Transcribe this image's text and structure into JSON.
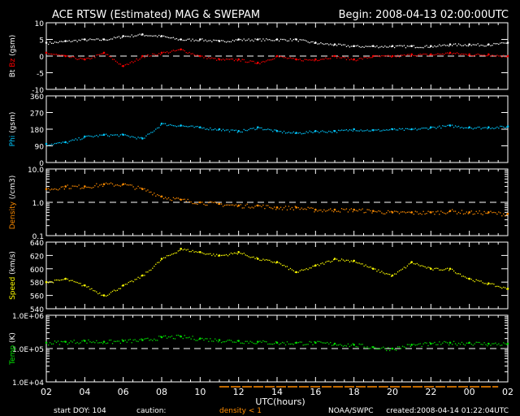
{
  "title": "ACE RTSW (Estimated) MAG & SWEPAM",
  "begin": "Begin: 2008-04-13 02:00:00UTC",
  "footer": {
    "start_doy": "start DOY: 104",
    "caution": "caution:",
    "caution_note": "density < 1",
    "source": "NOAA/SWPC",
    "created": "created:2008-04-14 01:22:04UTC"
  },
  "colors": {
    "bt": "#ffffff",
    "bz": "#ff0000",
    "phi": "#00c8ff",
    "density": "#ff8c00",
    "speed": "#ffff00",
    "temp": "#00e000"
  },
  "chart_data": {
    "type": "scatter",
    "xlabel": "UTC(hours)",
    "x_ticks": [
      "02",
      "04",
      "06",
      "08",
      "10",
      "12",
      "14",
      "16",
      "18",
      "20",
      "22",
      "00",
      "02"
    ],
    "x_hours": [
      0,
      1,
      2,
      3,
      4,
      5,
      6,
      7,
      8,
      9,
      10,
      11,
      12,
      13,
      14,
      15,
      16,
      17,
      18,
      19,
      20,
      21,
      22,
      23,
      24
    ],
    "panels": [
      {
        "id": "mag",
        "ylabel_a": "Bt",
        "ylabel_b": "Bz",
        "ylabel_unit": "(gsm)",
        "scale": "linear",
        "ylim": [
          -10,
          10
        ],
        "yticks": [
          -10,
          -5,
          0,
          5,
          10
        ],
        "yticklabels": [
          "-10",
          "-5",
          "0",
          "5",
          "10"
        ],
        "refline": 0,
        "series": [
          {
            "name": "Bt",
            "color": "#ffffff",
            "values": [
              4,
              4.5,
              5,
              5,
              6,
              6.5,
              6,
              5,
              5,
              4.5,
              5,
              5,
              5,
              5,
              4,
              3.5,
              3,
              3,
              3,
              3,
              3,
              3.5,
              3.5,
              3.5,
              4
            ]
          },
          {
            "name": "Bz",
            "color": "#ff0000",
            "values": [
              1,
              0,
              -1,
              1,
              -3,
              0,
              1,
              2,
              0,
              -1,
              -1,
              -2,
              0,
              -1,
              -1,
              0,
              -1,
              0,
              0,
              0.5,
              0.5,
              1,
              0.5,
              0.5,
              0
            ]
          }
        ]
      },
      {
        "id": "phi",
        "ylabel_a": "Phi",
        "ylabel_unit": "(gsm)",
        "scale": "linear",
        "ylim": [
          0,
          360
        ],
        "yticks": [
          0,
          90,
          180,
          270,
          360
        ],
        "yticklabels": [
          "0",
          "90",
          "180",
          "270",
          "360"
        ],
        "series": [
          {
            "name": "Phi",
            "color": "#00c8ff",
            "values": [
              100,
              110,
              140,
              150,
              150,
              130,
              210,
              200,
              190,
              180,
              170,
              190,
              170,
              160,
              170,
              170,
              180,
              175,
              180,
              180,
              190,
              200,
              190,
              190,
              195
            ]
          }
        ]
      },
      {
        "id": "density",
        "ylabel_a": "Density",
        "ylabel_unit": "(/cm3)",
        "scale": "log",
        "ylim": [
          0.1,
          10
        ],
        "yticks": [
          0.1,
          1,
          10
        ],
        "yticklabels": [
          "0.1",
          "1.0",
          "10.0"
        ],
        "refline": 1,
        "series": [
          {
            "name": "Density",
            "color": "#ff8c00",
            "values": [
              2.5,
              3,
              3,
              3.5,
              3.5,
              2.5,
              1.5,
              1.2,
              1.0,
              0.9,
              0.8,
              0.8,
              0.7,
              0.7,
              0.6,
              0.6,
              0.6,
              0.55,
              0.5,
              0.5,
              0.5,
              0.55,
              0.5,
              0.5,
              0.45
            ]
          }
        ]
      },
      {
        "id": "speed",
        "ylabel_a": "Speed",
        "ylabel_unit": "(km/s)",
        "scale": "linear",
        "ylim": [
          540,
          640
        ],
        "yticks": [
          540,
          560,
          580,
          600,
          620,
          640
        ],
        "yticklabels": [
          "540",
          "560",
          "580",
          "600",
          "620",
          "640"
        ],
        "series": [
          {
            "name": "Speed",
            "color": "#ffff00",
            "values": [
              580,
              585,
              575,
              560,
              575,
              590,
              615,
              630,
              625,
              620,
              625,
              615,
              610,
              595,
              605,
              615,
              612,
              600,
              590,
              610,
              600,
              600,
              585,
              578,
              570
            ]
          }
        ]
      },
      {
        "id": "temp",
        "ylabel_a": "Temp",
        "ylabel_unit": "(K)",
        "scale": "log",
        "ylim": [
          10000,
          1000000
        ],
        "yticks": [
          10000,
          100000,
          1000000
        ],
        "yticklabels": [
          "1.0E+04",
          "1.0E+05",
          "1.0E+06"
        ],
        "refline": 100000,
        "series": [
          {
            "name": "Temp",
            "color": "#00e000",
            "values": [
              150000,
              160000,
              170000,
              160000,
              170000,
              180000,
              220000,
              230000,
              200000,
              180000,
              170000,
              160000,
              150000,
              150000,
              150000,
              140000,
              130000,
              110000,
              100000,
              130000,
              140000,
              150000,
              150000,
              140000,
              140000
            ]
          }
        ]
      }
    ],
    "caution_hours": [
      9,
      23.5
    ]
  }
}
